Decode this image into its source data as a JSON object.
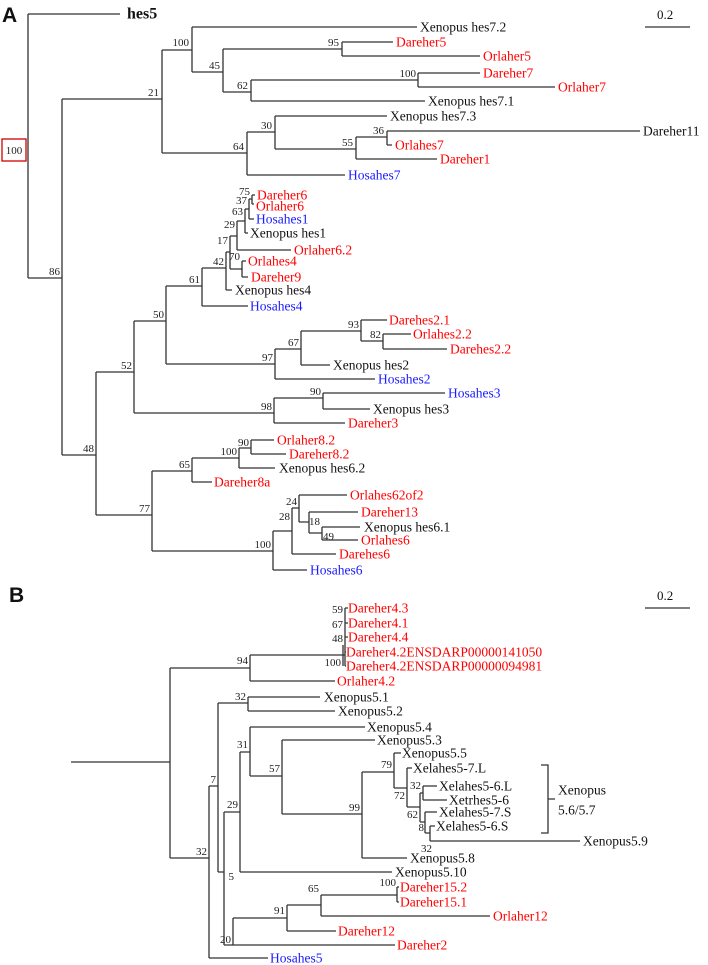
{
  "colors": {
    "fish": "#ff0000",
    "human": "#1a1aff",
    "xenopus": "#111111",
    "box": "#d00000"
  },
  "a": {
    "letter": "A",
    "root_leaf": "hes5",
    "root_support": "100",
    "scale": "0.2",
    "leaves": [
      "Xenopus hes7.2",
      "Dareher5",
      "Orlaher5",
      "Dareher7",
      "Orlaher7",
      "Xenopus hes7.1",
      "Xenopus hes7.3",
      "Dareher11",
      "Orlahes7",
      "Dareher1",
      "Hosahes7",
      "Dareher6",
      "Orlaher6",
      "Hosahes1",
      "Xenopus hes1",
      "Orlaher6.2",
      "Orlahes4",
      "Dareher9",
      "Xenopus hes4",
      "Hosahes4",
      "Darehes2.1",
      "Orlahes2.2",
      "Darehes2.2",
      "Xenopus hes2",
      "Hosahes2",
      "Hosahes3",
      "Xenopus hes3",
      "Dareher3",
      "Orlaher8.2",
      "Dareher8.2",
      "Xenopus hes6.2",
      "Dareher8a",
      "Orlahes62of2",
      "Dareher13",
      "Xenopus hes6.1",
      "Orlahes6",
      "Darehes6",
      "Hosahes6"
    ],
    "support": [
      "100",
      "45",
      "95",
      "62",
      "100",
      "21",
      "30",
      "36",
      "55",
      "64",
      "75",
      "37",
      "63",
      "29",
      "17",
      "70",
      "42",
      "61",
      "50",
      "97",
      "67",
      "93",
      "82",
      "98",
      "90",
      "52",
      "86",
      "48",
      "90",
      "100",
      "65",
      "24",
      "18",
      "49",
      "28",
      "77",
      "100"
    ]
  },
  "b": {
    "letter": "B",
    "scale": "0.2",
    "bracket_label": [
      "Xenopus",
      "5.6/5.7"
    ],
    "leaves": [
      "Dareher4.3",
      "Dareher4.1",
      "Dareher4.4",
      "Dareher4.2ENSDARP00000141050",
      "Dareher4.2ENSDARP00000094981",
      "Orlaher4.2",
      "Xenopus5.1",
      "Xenopus5.2",
      "Xenopus5.4",
      "Xenopus5.3",
      "Xenopus5.5",
      "Xelahes5-7.L",
      "Xelahes5-6.L",
      "Xetrhes5-6",
      "Xelahes5-7.S",
      "Xelahes5-6.S",
      "Xenopus5.9",
      "Xenopus5.8",
      "Xenopus5.10",
      "Dareher15.2",
      "Dareher15.1",
      "Orlaher12",
      "Dareher12",
      "Dareher2",
      "Hosahes5"
    ],
    "support": [
      "59",
      "67",
      "48",
      "100",
      "94",
      "32",
      "31",
      "57",
      "79",
      "72",
      "32",
      "62",
      "8",
      "32",
      "99",
      "7",
      "29",
      "5",
      "32",
      "20",
      "91",
      "65",
      "100"
    ]
  }
}
